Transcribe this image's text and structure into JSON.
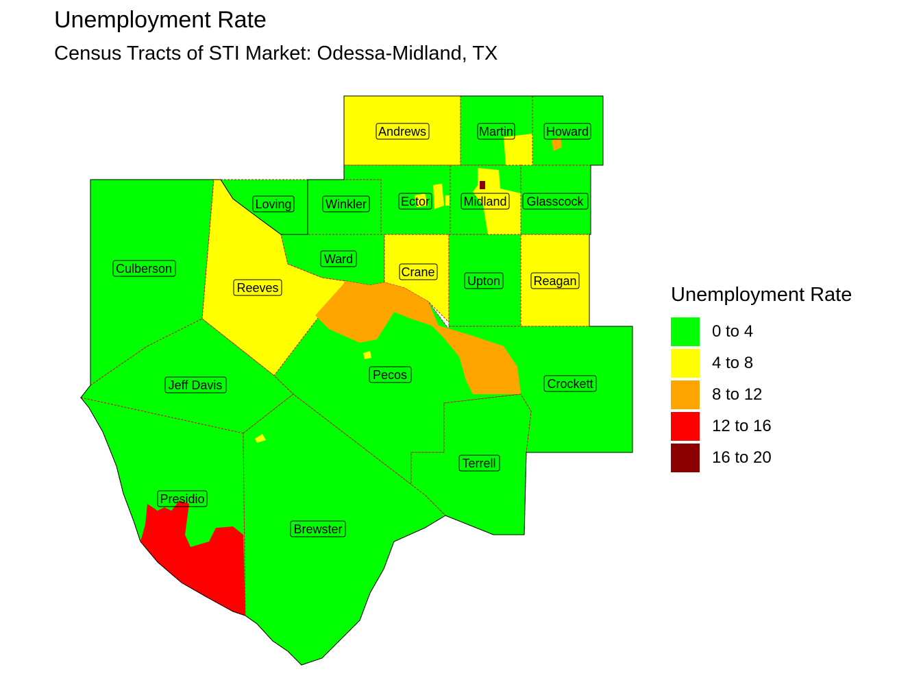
{
  "title": "Unemployment Rate",
  "subtitle": "Census Tracts of STI Market: Odessa-Midland, TX",
  "legend": {
    "title": "Unemployment Rate",
    "items": [
      {
        "label": "0 to 4",
        "color": "#00ff00"
      },
      {
        "label": "4 to 8",
        "color": "#ffff00"
      },
      {
        "label": "8 to 12",
        "color": "#ffa500"
      },
      {
        "label": "12 to 16",
        "color": "#ff0000"
      },
      {
        "label": "16 to 20",
        "color": "#8b0000"
      }
    ]
  },
  "counties": {
    "andrews": "Andrews",
    "martin": "Martin",
    "howard": "Howard",
    "loving": "Loving",
    "winkler": "Winkler",
    "ector": "Ector",
    "midland": "Midland",
    "glasscock": "Glasscock",
    "culberson": "Culberson",
    "reeves": "Reeves",
    "ward": "Ward",
    "crane": "Crane",
    "upton": "Upton",
    "reagan": "Reagan",
    "jeff_davis": "Jeff Davis",
    "pecos": "Pecos",
    "crockett": "Crockett",
    "terrell": "Terrell",
    "presidio": "Presidio",
    "brewster": "Brewster"
  }
}
